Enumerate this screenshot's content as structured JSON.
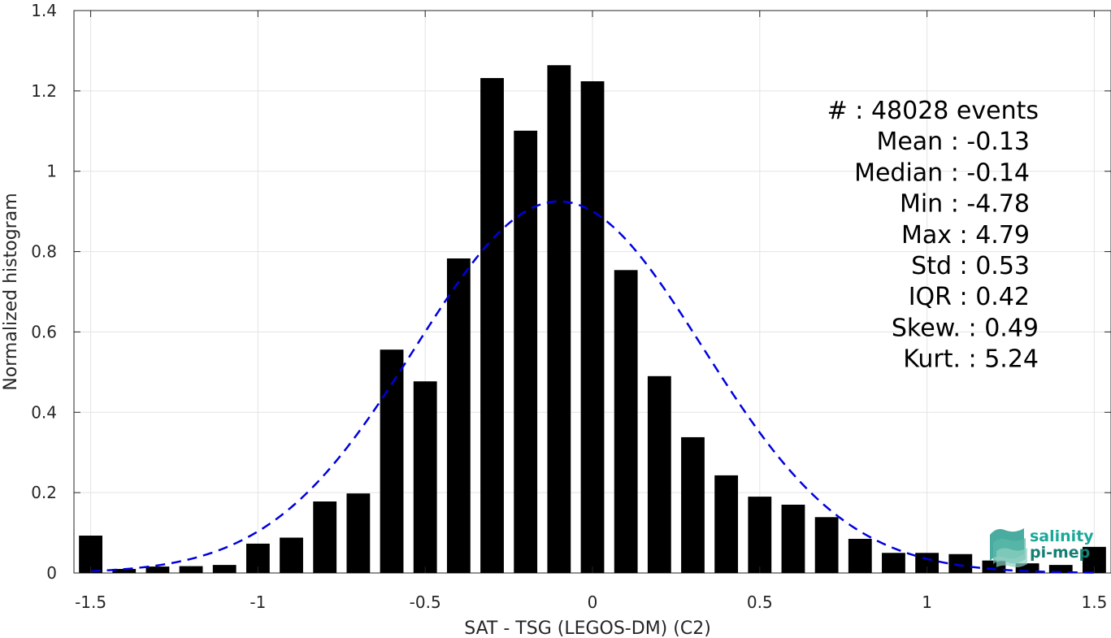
{
  "chart_data": {
    "type": "bar",
    "xlabel": "SAT - TSG (LEGOS-DM) (C2)",
    "ylabel": "Normalized histogram",
    "xlim": [
      -1.55,
      1.55
    ],
    "ylim": [
      0,
      1.4
    ],
    "xticks": [
      -1.5,
      -1,
      -0.5,
      0,
      0.5,
      1,
      1.5
    ],
    "xtick_labels": [
      "-1.5",
      "-1",
      "-0.5",
      "0",
      "0.5",
      "1",
      "1.5"
    ],
    "yticks": [
      0,
      0.2,
      0.4,
      0.6,
      0.8,
      1,
      1.2,
      1.4
    ],
    "ytick_labels": [
      "0",
      "0.2",
      "0.4",
      "0.6",
      "0.8",
      "1",
      "1.2",
      "1.4"
    ],
    "grid": true,
    "bar_width": 0.07,
    "bar_color": "#000000",
    "bars": {
      "x": [
        -1.5,
        -1.4,
        -1.3,
        -1.2,
        -1.1,
        -1.0,
        -0.9,
        -0.8,
        -0.7,
        -0.6,
        -0.5,
        -0.4,
        -0.3,
        -0.2,
        -0.1,
        0.0,
        0.1,
        0.2,
        0.3,
        0.4,
        0.5,
        0.6,
        0.7,
        0.8,
        0.9,
        1.0,
        1.1,
        1.2,
        1.3,
        1.4,
        1.5
      ],
      "values": [
        0.093,
        0.01,
        0.016,
        0.017,
        0.02,
        0.073,
        0.088,
        0.178,
        0.198,
        0.556,
        0.477,
        0.783,
        1.232,
        1.101,
        1.264,
        1.224,
        0.754,
        0.49,
        0.338,
        0.243,
        0.19,
        0.17,
        0.139,
        0.085,
        0.05,
        0.05,
        0.047,
        0.031,
        0.024,
        0.02,
        0.065
      ]
    },
    "fit": {
      "type": "gaussian",
      "color": "#0000e0",
      "dash": true,
      "mean": -0.1,
      "std": 0.43,
      "peak": 0.925,
      "x_range": [
        -1.5,
        1.5
      ]
    },
    "stats": [
      {
        "label": "#  : 48028 events"
      },
      {
        "label": "Mean : -0.13"
      },
      {
        "label": "Median : -0.14"
      },
      {
        "label": "Min : -4.78"
      },
      {
        "label": "Max : 4.79"
      },
      {
        "label": "Std : 0.53"
      },
      {
        "label": "IQR : 0.42"
      },
      {
        "label": "Skew. : 0.49"
      },
      {
        "label": "Kurt. : 5.24"
      }
    ]
  },
  "logo": {
    "line1": "salinity",
    "line2": "pi-mep",
    "color1": "#1aa89a",
    "color2": "#157f74"
  }
}
